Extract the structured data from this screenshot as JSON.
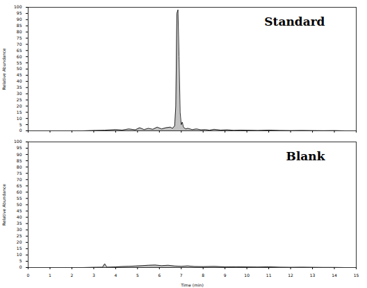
{
  "chart_data": [
    {
      "type": "line",
      "title": "Standard",
      "ylabel": "Relative Abundance",
      "color": "#000000",
      "tick_labels": "y",
      "x": [
        0,
        0.5,
        1,
        1.5,
        2,
        2.5,
        3,
        3.5,
        4,
        4.3,
        4.6,
        4.9,
        5.1,
        5.3,
        5.5,
        5.7,
        5.9,
        6.1,
        6.3,
        6.5,
        6.6,
        6.7,
        6.75,
        6.8,
        6.85,
        6.9,
        6.95,
        7.0,
        7.05,
        7.1,
        7.2,
        7.3,
        7.5,
        7.7,
        7.9,
        8.1,
        8.3,
        8.5,
        8.8,
        9.1,
        9.4,
        9.7,
        10,
        10.5,
        11,
        11.5,
        12,
        12.5,
        13,
        13.5,
        14,
        14.5,
        15
      ],
      "values": [
        0,
        0,
        0,
        0,
        0,
        0,
        0.3,
        0.5,
        1,
        0.6,
        1.5,
        0.8,
        2.5,
        1,
        2,
        1.2,
        3,
        1.5,
        2.5,
        3,
        2,
        4,
        20,
        95,
        98,
        60,
        15,
        5,
        7,
        3,
        1.5,
        2,
        1,
        1.5,
        0.8,
        1,
        0.5,
        1.2,
        0.6,
        0.8,
        0.4,
        0.6,
        0.5,
        0.3,
        0.6,
        0.3,
        0.2,
        0.3,
        0.2,
        0.1,
        0.2,
        0,
        0
      ],
      "xlim": [
        0,
        15
      ],
      "xticks": [
        0,
        1,
        2,
        3,
        4,
        5,
        6,
        7,
        8,
        9,
        10,
        11,
        12,
        13,
        14,
        15
      ],
      "ylim": [
        0,
        100
      ],
      "yticks": [
        0,
        5,
        10,
        15,
        20,
        25,
        30,
        35,
        40,
        45,
        50,
        55,
        60,
        65,
        70,
        75,
        80,
        85,
        90,
        95,
        100
      ]
    },
    {
      "type": "line",
      "title": "Blank",
      "ylabel": "Relative Abundance",
      "xlabel": "Time (min)",
      "color": "#000000",
      "x": [
        0,
        0.5,
        1,
        1.5,
        2,
        2.5,
        3,
        3.4,
        3.5,
        3.6,
        4,
        4.3,
        4.6,
        4.9,
        5.2,
        5.5,
        5.8,
        6.1,
        6.4,
        6.7,
        7.0,
        7.3,
        7.6,
        8,
        8.5,
        9,
        9.5,
        10,
        10.5,
        11,
        11.5,
        12,
        12.5,
        13,
        13.5,
        14,
        14.5,
        15
      ],
      "values": [
        0,
        0,
        0,
        0,
        0,
        0,
        0.2,
        0.3,
        3,
        0.3,
        0.5,
        0.8,
        1,
        1.2,
        1.5,
        1.8,
        2,
        1.5,
        1.8,
        1.2,
        1,
        1.3,
        0.8,
        0.7,
        0.9,
        0.5,
        0.6,
        0.5,
        0.4,
        0.6,
        0.3,
        0.2,
        0.3,
        0.2,
        0.1,
        0.1,
        0,
        0
      ],
      "xlim": [
        0,
        15
      ],
      "xticks": [
        0,
        1,
        2,
        3,
        4,
        5,
        6,
        7,
        8,
        9,
        10,
        11,
        12,
        13,
        14,
        15
      ],
      "ylim": [
        0,
        100
      ],
      "yticks": [
        0,
        5,
        10,
        15,
        20,
        25,
        30,
        35,
        40,
        45,
        50,
        55,
        60,
        65,
        70,
        75,
        80,
        85,
        90,
        95,
        100
      ]
    }
  ]
}
